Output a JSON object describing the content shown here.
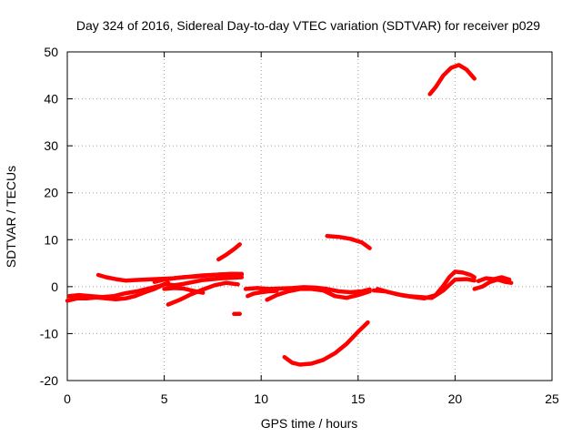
{
  "chart_data": {
    "type": "line",
    "title": "Day 324 of 2016, Sidereal Day-to-day VTEC variation (SDTVAR) for receiver p029",
    "xlabel": "GPS time / hours",
    "ylabel": "SDTVAR / TECUs",
    "xlim": [
      0,
      25
    ],
    "ylim": [
      -20,
      50
    ],
    "x_ticks": [
      0,
      5,
      10,
      15,
      20,
      25
    ],
    "y_ticks": [
      -20,
      -10,
      0,
      10,
      20,
      30,
      40,
      50
    ],
    "x_tick_labels": [
      "0",
      "5",
      "10",
      "15",
      "20",
      "25"
    ],
    "y_tick_labels": [
      "-20",
      "-10",
      "0",
      "10",
      "20",
      "30",
      "40",
      "50"
    ],
    "grid": true,
    "color": "#ff0000",
    "series": [
      {
        "x": [
          0.0,
          0.5,
          1.0,
          1.5,
          2.0,
          2.5,
          3.0,
          3.5,
          4.0,
          4.5,
          5.0,
          5.5,
          6.0,
          6.5,
          7.0,
          7.5,
          8.0,
          8.5,
          9.0
        ],
        "y": [
          -3.0,
          -2.5,
          -2.5,
          -2.3,
          -2.5,
          -2.7,
          -2.5,
          -2.0,
          -1.2,
          -0.5,
          0.5,
          0.3,
          0.6,
          1.0,
          1.4,
          1.6,
          1.8,
          1.9,
          2.0
        ]
      },
      {
        "x": [
          0.1,
          0.6,
          1.2,
          1.8,
          2.4,
          3.0,
          3.6,
          4.2,
          4.8,
          5.2
        ],
        "y": [
          -2.0,
          -1.8,
          -2.0,
          -2.2,
          -2.0,
          -1.4,
          -1.0,
          -0.4,
          0.2,
          0.8
        ]
      },
      {
        "x": [
          1.6,
          2.0,
          2.5,
          3.0,
          3.5,
          4.0,
          4.5,
          5.0,
          5.5,
          6.0,
          6.5,
          7.0,
          7.5,
          8.0,
          8.5,
          9.0
        ],
        "y": [
          2.5,
          2.0,
          1.6,
          1.3,
          1.4,
          1.5,
          1.6,
          1.7,
          1.8,
          2.0,
          2.1,
          2.3,
          2.5,
          2.6,
          2.7,
          2.6
        ]
      },
      {
        "x": [
          4.5,
          5.0,
          5.5,
          6.0,
          6.5,
          7.0,
          7.5,
          8.0,
          8.5,
          9.0
        ],
        "y": [
          1.0,
          1.5,
          1.8,
          2.0,
          2.2,
          2.4,
          2.5,
          2.6,
          2.7,
          2.7
        ]
      },
      {
        "x": [
          5.0,
          5.5,
          6.0,
          6.5,
          7.0
        ],
        "y": [
          -0.5,
          -0.3,
          -0.4,
          -0.9,
          -1.3
        ]
      },
      {
        "x": [
          5.2,
          5.8,
          6.4,
          7.0,
          7.6,
          8.2,
          8.8
        ],
        "y": [
          -3.8,
          -2.8,
          -1.6,
          -0.6,
          0.3,
          0.8,
          0.5
        ]
      },
      {
        "x": [
          7.8,
          8.2,
          8.6,
          8.9
        ],
        "y": [
          5.8,
          6.8,
          8.0,
          9.0
        ]
      },
      {
        "x": [
          8.6,
          8.9
        ],
        "y": [
          -5.8,
          -5.8
        ]
      },
      {
        "x": [
          9.2,
          9.8,
          10.4,
          11.0,
          11.6,
          12.2,
          12.8,
          13.4,
          14.0,
          14.6,
          15.2,
          15.6
        ],
        "y": [
          -0.5,
          -0.3,
          -0.5,
          -0.4,
          -0.3,
          -0.1,
          -0.2,
          -0.5,
          -1.0,
          -1.2,
          -1.0,
          -0.6
        ]
      },
      {
        "x": [
          9.3,
          9.6,
          10.0,
          10.4,
          10.8
        ],
        "y": [
          -2.0,
          -1.5,
          -1.2,
          -1.0,
          -0.9
        ]
      },
      {
        "x": [
          10.3,
          10.8,
          11.4,
          12.0,
          12.6,
          13.2,
          13.8,
          14.4,
          15.0,
          15.6
        ],
        "y": [
          -2.8,
          -1.8,
          -1.0,
          -0.5,
          -0.5,
          -0.8,
          -2.0,
          -2.4,
          -1.8,
          -1.0
        ]
      },
      {
        "x": [
          11.2,
          11.6,
          12.0,
          12.6,
          13.2,
          13.8,
          14.4,
          15.0,
          15.5
        ],
        "y": [
          -15.0,
          -16.2,
          -16.6,
          -16.4,
          -15.6,
          -14.2,
          -12.2,
          -9.6,
          -7.6
        ]
      },
      {
        "x": [
          13.4,
          14.0,
          14.6,
          15.2,
          15.6
        ],
        "y": [
          10.8,
          10.6,
          10.2,
          9.4,
          8.2
        ]
      },
      {
        "x": [
          15.8,
          16.4,
          17.0,
          17.6,
          18.2,
          18.8,
          19.4,
          20.0,
          20.6,
          21.0
        ],
        "y": [
          -0.8,
          -1.0,
          -1.6,
          -2.0,
          -2.2,
          -2.4,
          -0.8,
          1.5,
          1.6,
          1.3
        ]
      },
      {
        "x": [
          16.0,
          16.6,
          17.2,
          17.8,
          18.4,
          19.0,
          19.4,
          19.7,
          20.0,
          20.4,
          20.8,
          21.0
        ],
        "y": [
          -0.5,
          -1.2,
          -1.8,
          -2.2,
          -2.5,
          -1.8,
          0.2,
          2.0,
          3.2,
          3.0,
          2.5,
          2.0
        ]
      },
      {
        "x": [
          21.0,
          21.4,
          21.8,
          22.2,
          22.6,
          22.9
        ],
        "y": [
          -0.5,
          0.0,
          1.0,
          1.5,
          1.0,
          0.8
        ]
      },
      {
        "x": [
          21.2,
          21.6,
          22.0,
          22.4,
          22.8
        ],
        "y": [
          1.2,
          1.8,
          1.6,
          2.0,
          1.5
        ]
      },
      {
        "x": [
          18.7,
          19.0,
          19.4,
          19.8,
          20.2,
          20.6,
          21.0
        ],
        "y": [
          41.0,
          42.5,
          45.0,
          46.6,
          47.2,
          46.2,
          44.3
        ]
      }
    ]
  }
}
